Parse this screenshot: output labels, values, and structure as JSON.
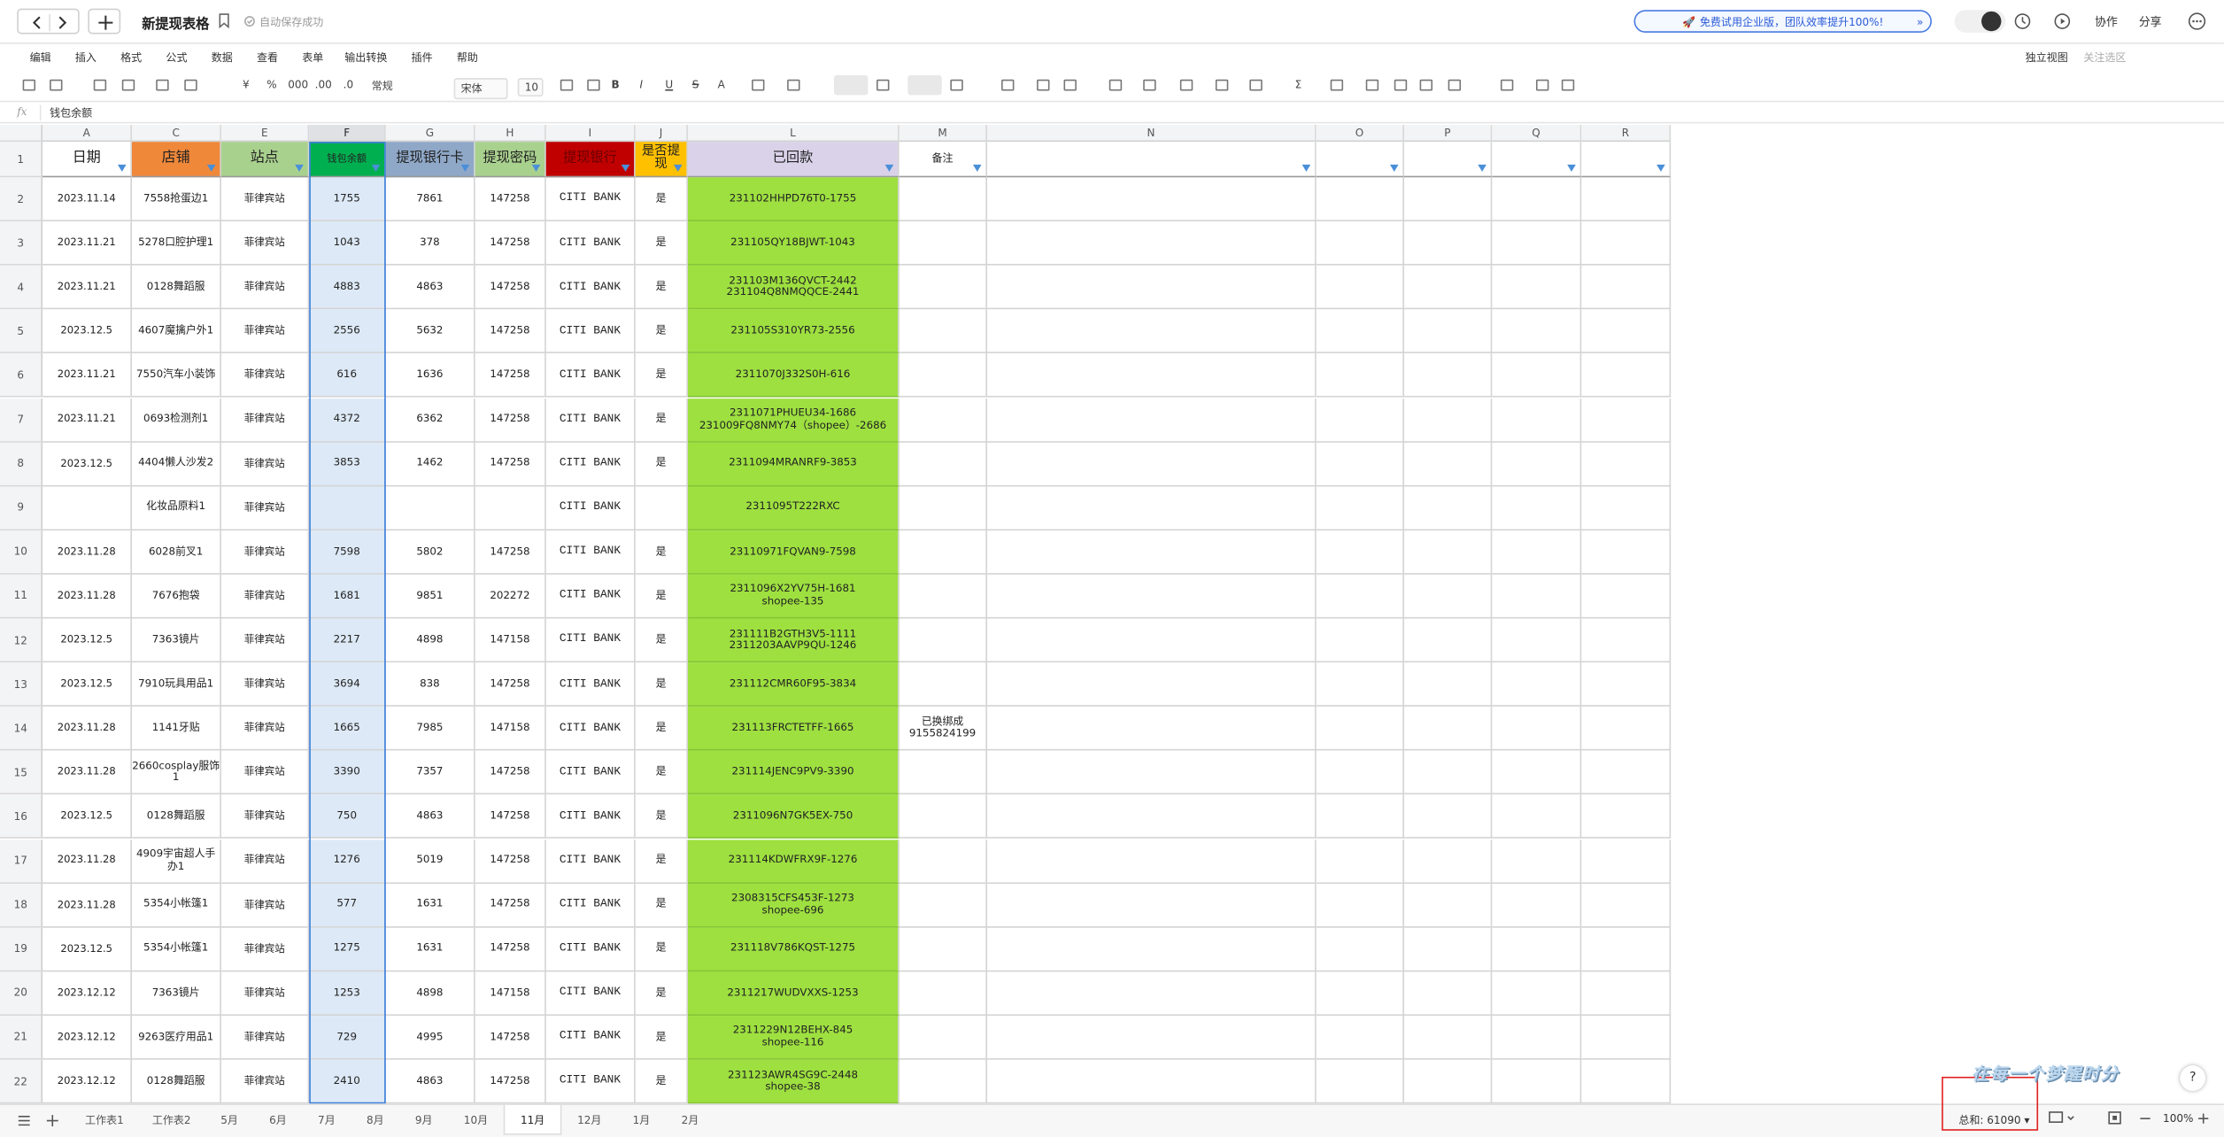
{
  "header": {
    "title": "新提现表格",
    "save_status": "自动保存成功",
    "promo": "免费试用企业版，团队效率提升100%!",
    "buttons": [
      "协作",
      "分享"
    ]
  },
  "menu": [
    "编辑",
    "插入",
    "格式",
    "公式",
    "数据",
    "查看",
    "表单",
    "输出转换",
    "插件",
    "帮助"
  ],
  "menu_right": [
    "独立视图",
    "关注选区"
  ],
  "toolbar": {
    "items": [
      "¥",
      "%",
      "000",
      ".00",
      ".0",
      "常规",
      "宋体",
      "10",
      "B",
      "I",
      "U",
      "S",
      "A",
      "Σ"
    ]
  },
  "formula_bar": {
    "fx": "fx",
    "content": "钱包余额"
  },
  "columns": [
    "A",
    "C",
    "E",
    "F",
    "G",
    "H",
    "I",
    "J",
    "L",
    "M",
    "N",
    "O",
    "P",
    "Q",
    "R"
  ],
  "table": {
    "row_labels": [
      "1",
      "2",
      "3",
      "4",
      "5",
      "6",
      "7",
      "8",
      "9",
      "10",
      "11",
      "12",
      "13",
      "14",
      "15",
      "16",
      "17",
      "18",
      "19",
      "20",
      "21",
      "22"
    ],
    "header": [
      "日期",
      "店铺",
      "站点",
      "钱包余额",
      "提现银行卡",
      "提现密码",
      "提现银行",
      "是否提现",
      "已回款",
      "备注"
    ],
    "rows": [
      [
        "2023.11.14",
        "7558抢蛋边1",
        "菲律宾站",
        "1755",
        "7861",
        "147258",
        "CITI BANK",
        "是",
        "231102HHPD76T0-1755",
        null
      ],
      [
        "2023.11.21",
        "5278口腔护理1",
        "菲律宾站",
        "1043",
        "378",
        "147258",
        "CITI BANK",
        "是",
        "231105QY18BJWT-1043",
        null
      ],
      [
        "2023.11.21",
        "0128舞蹈服",
        "菲律宾站",
        "4883",
        "4863",
        "147258",
        "CITI BANK",
        "是",
        "231103M136QVCT-2442\n231104Q8NMQQCE-2441",
        null
      ],
      [
        "2023.12.5",
        "4607魔擒户外1",
        "菲律宾站",
        "2556",
        "5632",
        "147258",
        "CITI BANK",
        "是",
        "231105S310YR73-2556",
        null
      ],
      [
        "2023.11.21",
        "7550汽车小装饰",
        "菲律宾站",
        "616",
        "1636",
        "147258",
        "CITI BANK",
        "是",
        "2311070J332S0H-616",
        null
      ],
      [
        "2023.11.21",
        "0693检测剂1",
        "菲律宾站",
        "4372",
        "6362",
        "147258",
        "CITI BANK",
        "是",
        "2311071PHUEU34-1686\n231009FQ8NMY74（shopee）-2686",
        null
      ],
      [
        "2023.12.5",
        "4404懒人沙发2",
        "菲律宾站",
        "3853",
        "1462",
        "147258",
        "CITI BANK",
        "是",
        "2311094MRANRF9-3853",
        null
      ],
      [
        null,
        "化妆品原料1",
        "菲律宾站",
        null,
        null,
        null,
        "CITI BANK",
        null,
        "2311095T222RXC",
        null
      ],
      [
        "2023.11.28",
        "6028前叉1",
        "菲律宾站",
        "7598",
        "5802",
        "147258",
        "CITI BANK",
        "是",
        "23110971FQVAN9-7598",
        null
      ],
      [
        "2023.11.28",
        "7676抱袋",
        "菲律宾站",
        "1681",
        "9851",
        "202272",
        "CITI BANK",
        "是",
        "2311096X2YV75H-1681\nshopee-135",
        null
      ],
      [
        "2023.12.5",
        "7363镜片",
        "菲律宾站",
        "2217",
        "4898",
        "147158",
        "CITI BANK",
        "是",
        "231111B2GTH3V5-1111\n2311203AAVP9QU-1246",
        null
      ],
      [
        "2023.12.5",
        "7910玩具用品1",
        "菲律宾站",
        "3694",
        "838",
        "147258",
        "CITI BANK",
        "是",
        "231112CMR60F95-3834",
        null
      ],
      [
        "2023.11.28",
        "1141牙贴",
        "菲律宾站",
        "1665",
        "7985",
        "147158",
        "CITI BANK",
        "是",
        "231113FRCTETFF-1665",
        "已换绑成\n9155824199"
      ],
      [
        "2023.11.28",
        "2660cosplay服饰1",
        "菲律宾站",
        "3390",
        "7357",
        "147258",
        "CITI BANK",
        "是",
        "231114JENC9PV9-3390",
        null
      ],
      [
        "2023.12.5",
        "0128舞蹈服",
        "菲律宾站",
        "750",
        "4863",
        "147258",
        "CITI BANK",
        "是",
        "2311096N7GK5EX-750",
        null
      ],
      [
        "2023.11.28",
        "4909宇宙超人手办1",
        "菲律宾站",
        "1276",
        "5019",
        "147258",
        "CITI BANK",
        "是",
        "231114KDWFRX9F-1276",
        null
      ],
      [
        "2023.11.28",
        "5354小帐篷1",
        "菲律宾站",
        "577",
        "1631",
        "147258",
        "CITI BANK",
        "是",
        "2308315CFS453F-1273\nshopee-696",
        null
      ],
      [
        "2023.12.5",
        "5354小帐篷1",
        "菲律宾站",
        "1275",
        "1631",
        "147258",
        "CITI BANK",
        "是",
        "231118V786KQST-1275",
        null
      ],
      [
        "2023.12.12",
        "7363镜片",
        "菲律宾站",
        "1253",
        "4898",
        "147158",
        "CITI BANK",
        "是",
        "2311217WUDVXXS-1253",
        null
      ],
      [
        "2023.12.12",
        "9263医疗用品1",
        "菲律宾站",
        "729",
        "4995",
        "147258",
        "CITI BANK",
        "是",
        "2311229N12BEHX-845\nshopee-116",
        null
      ],
      [
        "2023.12.12",
        "0128舞蹈服",
        "菲律宾站",
        "2410",
        "4863",
        "147258",
        "CITI BANK",
        "是",
        "231123AWR4SG9C-2448\nshopee-38",
        null
      ]
    ]
  },
  "sheet_tabs": [
    "工作表1",
    "工作表2",
    "5月",
    "6月",
    "7月",
    "8月",
    "9月",
    "10月",
    "11月",
    "12月",
    "1月",
    "2月"
  ],
  "active_tab": 8,
  "status": {
    "sum": "总和: 61090",
    "zoom": "100%",
    "help": "?"
  },
  "watermark": "在每一个梦醒时分"
}
